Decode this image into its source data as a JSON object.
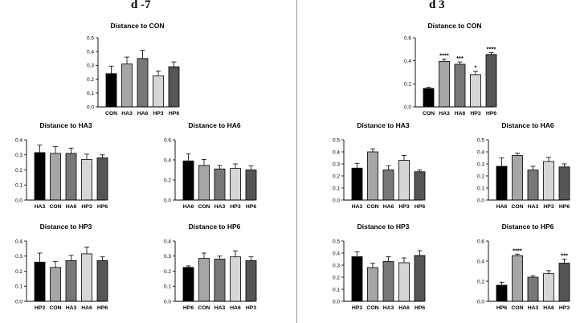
{
  "panels": {
    "left_label": "d -7",
    "right_label": "d 3"
  },
  "chart_data": [
    {
      "type": "bar",
      "panel": "d -7",
      "title": "Distance to CON",
      "categories": [
        "CON",
        "HA3",
        "HA6",
        "HP3",
        "HP6"
      ],
      "values": [
        0.24,
        0.31,
        0.35,
        0.225,
        0.29
      ],
      "errors": [
        0.055,
        0.05,
        0.06,
        0.035,
        0.035
      ],
      "significance": [
        "",
        "",
        "",
        "",
        ""
      ],
      "ylim": [
        0,
        0.5
      ],
      "yticks": [
        0.0,
        0.1,
        0.2,
        0.3,
        0.4,
        0.5
      ],
      "colors": [
        "#000000",
        "#a6a6a6",
        "#777777",
        "#d6d6d6",
        "#555555"
      ]
    },
    {
      "type": "bar",
      "panel": "d -7",
      "title": "Distance to HA3",
      "categories": [
        "HA3",
        "CON",
        "HA6",
        "HP3",
        "HP6"
      ],
      "values": [
        0.315,
        0.31,
        0.31,
        0.27,
        0.28
      ],
      "errors": [
        0.05,
        0.045,
        0.035,
        0.035,
        0.02
      ],
      "significance": [
        "",
        "",
        "",
        "",
        ""
      ],
      "ylim": [
        0,
        0.4
      ],
      "yticks": [
        0.0,
        0.1,
        0.2,
        0.3,
        0.4
      ],
      "colors": [
        "#000000",
        "#a6a6a6",
        "#777777",
        "#d6d6d6",
        "#555555"
      ]
    },
    {
      "type": "bar",
      "panel": "d -7",
      "title": "Distance to HA6",
      "categories": [
        "HA6",
        "CON",
        "HA3",
        "HP3",
        "HP6"
      ],
      "values": [
        0.39,
        0.345,
        0.31,
        0.315,
        0.3
      ],
      "errors": [
        0.07,
        0.06,
        0.035,
        0.045,
        0.04
      ],
      "significance": [
        "",
        "",
        "",
        "",
        ""
      ],
      "ylim": [
        0,
        0.6
      ],
      "yticks": [
        0.0,
        0.2,
        0.4,
        0.6
      ],
      "colors": [
        "#000000",
        "#a6a6a6",
        "#777777",
        "#d6d6d6",
        "#555555"
      ]
    },
    {
      "type": "bar",
      "panel": "d -7",
      "title": "Distance to HP3",
      "categories": [
        "HP3",
        "CON",
        "HA3",
        "HA6",
        "HP6"
      ],
      "values": [
        0.26,
        0.225,
        0.27,
        0.315,
        0.27
      ],
      "errors": [
        0.06,
        0.04,
        0.035,
        0.045,
        0.025
      ],
      "significance": [
        "",
        "",
        "",
        "",
        ""
      ],
      "ylim": [
        0,
        0.4
      ],
      "yticks": [
        0.0,
        0.1,
        0.2,
        0.3,
        0.4
      ],
      "colors": [
        "#000000",
        "#a6a6a6",
        "#777777",
        "#d6d6d6",
        "#555555"
      ]
    },
    {
      "type": "bar",
      "panel": "d -7",
      "title": "Distance to HP6",
      "categories": [
        "HP6",
        "CON",
        "HA3",
        "HA6",
        "HP3"
      ],
      "values": [
        0.225,
        0.285,
        0.28,
        0.295,
        0.27
      ],
      "errors": [
        0.01,
        0.035,
        0.02,
        0.04,
        0.025
      ],
      "significance": [
        "",
        "",
        "",
        "",
        ""
      ],
      "ylim": [
        0,
        0.4
      ],
      "yticks": [
        0.0,
        0.1,
        0.2,
        0.3,
        0.4
      ],
      "colors": [
        "#000000",
        "#a6a6a6",
        "#777777",
        "#d6d6d6",
        "#555555"
      ]
    },
    {
      "type": "bar",
      "panel": "d 3",
      "title": "Distance to CON",
      "categories": [
        "CON",
        "HA3",
        "HA6",
        "HP3",
        "HP6"
      ],
      "values": [
        0.16,
        0.395,
        0.37,
        0.28,
        0.455
      ],
      "errors": [
        0.01,
        0.02,
        0.02,
        0.03,
        0.015
      ],
      "significance": [
        "",
        "****",
        "***",
        "*",
        "****"
      ],
      "ylim": [
        0,
        0.6
      ],
      "yticks": [
        0.0,
        0.2,
        0.4,
        0.6
      ],
      "colors": [
        "#000000",
        "#a6a6a6",
        "#777777",
        "#d6d6d6",
        "#555555"
      ]
    },
    {
      "type": "bar",
      "panel": "d 3",
      "title": "Distance to HA3",
      "categories": [
        "HA3",
        "CON",
        "HA6",
        "HP3",
        "HP6"
      ],
      "values": [
        0.265,
        0.4,
        0.25,
        0.33,
        0.235
      ],
      "errors": [
        0.04,
        0.025,
        0.035,
        0.04,
        0.015
      ],
      "significance": [
        "",
        "",
        "",
        "",
        ""
      ],
      "ylim": [
        0,
        0.5
      ],
      "yticks": [
        0.0,
        0.1,
        0.2,
        0.3,
        0.4,
        0.5
      ],
      "colors": [
        "#000000",
        "#a6a6a6",
        "#777777",
        "#d6d6d6",
        "#555555"
      ]
    },
    {
      "type": "bar",
      "panel": "d 3",
      "title": "Distance to HA6",
      "categories": [
        "HA6",
        "CON",
        "HA3",
        "HP3",
        "HP6"
      ],
      "values": [
        0.28,
        0.37,
        0.25,
        0.32,
        0.275
      ],
      "errors": [
        0.07,
        0.02,
        0.03,
        0.035,
        0.025
      ],
      "significance": [
        "",
        "",
        "",
        "",
        ""
      ],
      "ylim": [
        0,
        0.5
      ],
      "yticks": [
        0.0,
        0.1,
        0.2,
        0.3,
        0.4,
        0.5
      ],
      "colors": [
        "#000000",
        "#a6a6a6",
        "#777777",
        "#d6d6d6",
        "#555555"
      ]
    },
    {
      "type": "bar",
      "panel": "d 3",
      "title": "Distance to HP3",
      "categories": [
        "HP3",
        "CON",
        "HA3",
        "HA6",
        "HP6"
      ],
      "values": [
        0.37,
        0.28,
        0.33,
        0.32,
        0.38
      ],
      "errors": [
        0.04,
        0.035,
        0.04,
        0.04,
        0.04
      ],
      "significance": [
        "",
        "",
        "",
        "",
        ""
      ],
      "ylim": [
        0,
        0.5
      ],
      "yticks": [
        0.0,
        0.1,
        0.2,
        0.3,
        0.4,
        0.5
      ],
      "colors": [
        "#000000",
        "#a6a6a6",
        "#777777",
        "#d6d6d6",
        "#555555"
      ]
    },
    {
      "type": "bar",
      "panel": "d 3",
      "title": "Distance to HP6",
      "categories": [
        "HP6",
        "CON",
        "HA3",
        "HA6",
        "HP3"
      ],
      "values": [
        0.16,
        0.455,
        0.24,
        0.275,
        0.38
      ],
      "errors": [
        0.03,
        0.015,
        0.015,
        0.03,
        0.04
      ],
      "significance": [
        "",
        "****",
        "",
        "",
        "***"
      ],
      "ylim": [
        0,
        0.6
      ],
      "yticks": [
        0.0,
        0.2,
        0.4,
        0.6
      ],
      "colors": [
        "#000000",
        "#a6a6a6",
        "#777777",
        "#d6d6d6",
        "#555555"
      ]
    }
  ]
}
